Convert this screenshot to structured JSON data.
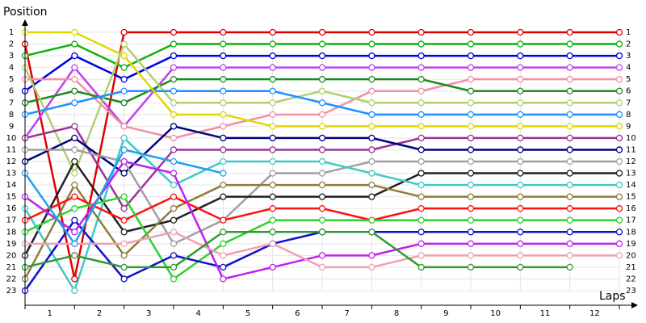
{
  "chart_data": {
    "type": "line",
    "ylabel": "Position",
    "xlabel": "Laps",
    "x": [
      0,
      1,
      2,
      3,
      4,
      5,
      6,
      7,
      8,
      9,
      10,
      11,
      12
    ],
    "xlim": [
      0,
      12
    ],
    "xticks": [
      {
        "value": 0.5,
        "label": "1"
      },
      {
        "value": 1.5,
        "label": "2"
      },
      {
        "value": 2.5,
        "label": "3"
      },
      {
        "value": 3.5,
        "label": "4"
      },
      {
        "value": 4.5,
        "label": "5"
      },
      {
        "value": 5.5,
        "label": "6"
      },
      {
        "value": 6.5,
        "label": "7"
      },
      {
        "value": 7.5,
        "label": "8"
      },
      {
        "value": 8.5,
        "label": "9"
      },
      {
        "value": 9.5,
        "label": "10"
      },
      {
        "value": 10.5,
        "label": "11"
      },
      {
        "value": 11.5,
        "label": "12"
      }
    ],
    "ylim": [
      23,
      1
    ],
    "yticks": [
      1,
      2,
      3,
      4,
      5,
      6,
      7,
      8,
      9,
      10,
      11,
      12,
      13,
      14,
      15,
      16,
      17,
      18,
      19,
      20,
      21,
      22,
      23
    ],
    "grid": true,
    "series": [
      {
        "color": "#e00000",
        "values": [
          2,
          22,
          1,
          1,
          1,
          1,
          1,
          1,
          1,
          1,
          1,
          1,
          1
        ]
      },
      {
        "color": "#10b010",
        "values": [
          3,
          2,
          4,
          2,
          2,
          2,
          2,
          2,
          2,
          2,
          2,
          2,
          2
        ]
      },
      {
        "color": "#0000e0",
        "values": [
          6,
          3,
          5,
          3,
          3,
          3,
          3,
          3,
          3,
          3,
          3,
          3,
          3
        ]
      },
      {
        "color": "#c040f0",
        "values": [
          10,
          4,
          9,
          4,
          4,
          4,
          4,
          4,
          4,
          4,
          4,
          4,
          4
        ]
      },
      {
        "color": "#f090a8",
        "values": [
          5,
          5,
          9,
          10,
          9,
          8,
          8,
          6,
          6,
          5,
          5,
          5,
          5
        ]
      },
      {
        "color": "#208a20",
        "values": [
          7,
          6,
          7,
          5,
          5,
          5,
          5,
          5,
          5,
          6,
          6,
          6,
          6
        ]
      },
      {
        "color": "#b0d070",
        "values": [
          4,
          13,
          2,
          7,
          7,
          7,
          6,
          7,
          7,
          7,
          7,
          7,
          7
        ]
      },
      {
        "color": "#1e90ff",
        "values": [
          8,
          7,
          6,
          6,
          6,
          6,
          7,
          8,
          8,
          8,
          8,
          8,
          8
        ]
      },
      {
        "color": "#e0d800",
        "values": [
          1,
          1,
          3,
          8,
          8,
          9,
          9,
          9,
          9,
          9,
          9,
          9,
          9
        ]
      },
      {
        "color": "#993399",
        "values": [
          10,
          9,
          16,
          11,
          11,
          11,
          11,
          11,
          10,
          10,
          10,
          10,
          10
        ]
      },
      {
        "color": "#000080",
        "values": [
          12,
          10,
          13,
          9,
          10,
          10,
          10,
          10,
          11,
          11,
          11,
          11,
          11
        ]
      },
      {
        "color": "#a0a0a0",
        "values": [
          11,
          11,
          12,
          19,
          17,
          13,
          13,
          12,
          12,
          12,
          12,
          12,
          12
        ]
      },
      {
        "color": "#202020",
        "values": [
          20,
          12,
          18,
          17,
          15,
          15,
          15,
          15,
          13,
          13,
          13,
          13,
          13
        ]
      },
      {
        "color": "#40c8c8",
        "values": [
          16,
          23,
          10,
          14,
          12,
          12,
          12,
          13,
          14,
          14,
          14,
          14,
          14
        ]
      },
      {
        "color": "#8b7d3a",
        "values": [
          22,
          14,
          20,
          16,
          14,
          14,
          14,
          14,
          15,
          15,
          15,
          15,
          15
        ]
      },
      {
        "color": "#ff1010",
        "values": [
          17,
          15,
          17,
          15,
          17,
          16,
          16,
          17,
          16,
          16,
          16,
          16,
          16
        ]
      },
      {
        "color": "#30d030",
        "values": [
          18,
          16,
          15,
          22,
          19,
          17,
          17,
          17,
          17,
          17,
          17,
          17,
          17
        ]
      },
      {
        "color": "#1010d0",
        "values": [
          23,
          17,
          22,
          20,
          21,
          19,
          18,
          18,
          18,
          18,
          18,
          18,
          18
        ]
      },
      {
        "color": "#c020f0",
        "values": [
          15,
          18,
          12,
          13,
          22,
          21,
          20,
          20,
          19,
          19,
          19,
          19,
          19
        ]
      },
      {
        "color": "#f0a0b0",
        "values": [
          19,
          19,
          19,
          18,
          20,
          19,
          21,
          21,
          20,
          20,
          20,
          20,
          20
        ]
      },
      {
        "color": "#309a30",
        "values": [
          21,
          20,
          21,
          21,
          18,
          18,
          18,
          18,
          21,
          21,
          21,
          21,
          null
        ]
      },
      {
        "color": "#1ea0f0",
        "values": [
          13,
          19,
          11,
          12,
          13,
          null,
          null,
          null,
          null,
          null,
          null,
          null,
          null
        ]
      }
    ]
  }
}
